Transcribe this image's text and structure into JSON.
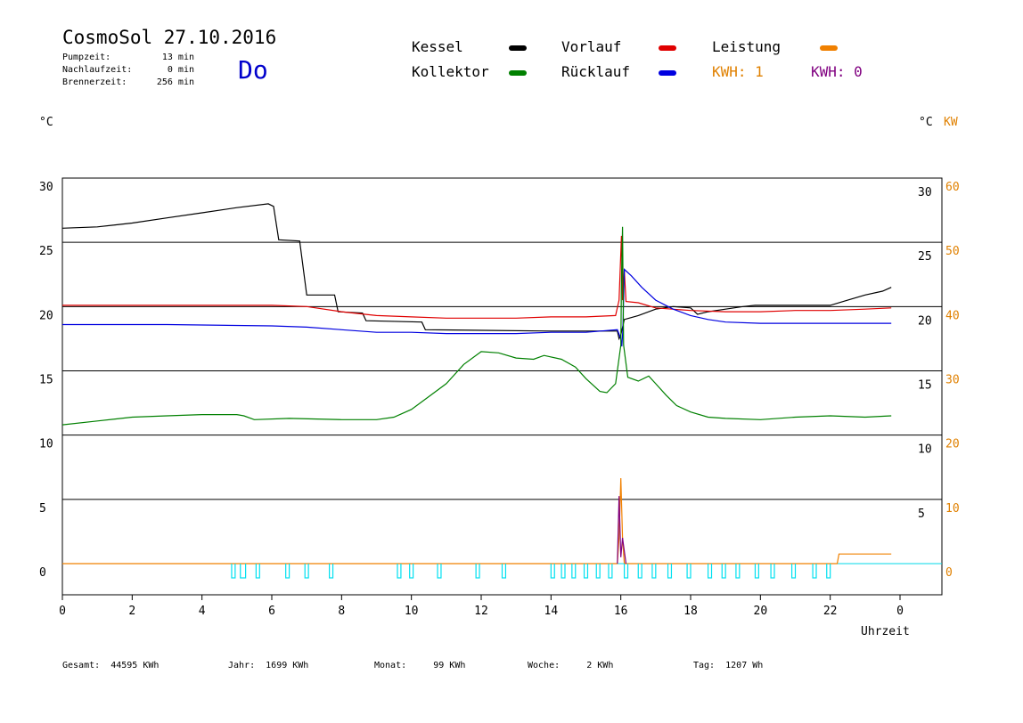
{
  "header": {
    "title": "CosmoSol 27.10.2016",
    "day": "Do",
    "info": [
      {
        "label": "Pumpzeit:",
        "value": "13 min"
      },
      {
        "label": "Nachlaufzeit:",
        "value": "0 min"
      },
      {
        "label": "Brennerzeit:",
        "value": "256 min"
      }
    ]
  },
  "legend": {
    "kessel": {
      "label": "Kessel",
      "color": "#000000"
    },
    "vorlauf": {
      "label": "Vorlauf",
      "color": "#e00000"
    },
    "leistung": {
      "label": "Leistung",
      "color": "#f08000"
    },
    "kollektor": {
      "label": "Kollektor",
      "color": "#008000"
    },
    "ruecklauf": {
      "label": "Rücklauf",
      "color": "#0000e0"
    },
    "kwh1": {
      "label": "KWH: 1",
      "color": "#e08000"
    },
    "kwh0": {
      "label": "KWH: 0",
      "color": "#800080"
    }
  },
  "units": {
    "left": "°C",
    "right_c": "°C",
    "right_kw": "KW"
  },
  "stats": {
    "gesamt": {
      "label": "Gesamt:",
      "value": "44595 KWh"
    },
    "jahr": {
      "label": "Jahr:",
      "value": "1699 KWh"
    },
    "monat": {
      "label": "Monat:",
      "value": "99 KWh"
    },
    "woche": {
      "label": "Woche:",
      "value": "2 KWh"
    },
    "tag": {
      "label": "Tag:",
      "value": "1207 Wh"
    }
  },
  "chart_data": {
    "type": "line",
    "xlabel": "Uhrzeit",
    "xlim": [
      0,
      24
    ],
    "xtick_labels": [
      "0",
      "2",
      "4",
      "6",
      "8",
      "10",
      "12",
      "14",
      "16",
      "18",
      "20",
      "22",
      "0"
    ],
    "ylim": [
      -2.5,
      30
    ],
    "ytick_labels_left": [
      "30",
      "25",
      "20",
      "15",
      "10",
      "5",
      "0"
    ],
    "ytick_labels_right_c": [
      "30",
      "25",
      "20",
      "15",
      "10",
      "5"
    ],
    "ytick_labels_right_kw": [
      "60",
      "50",
      "40",
      "30",
      "20",
      "10",
      "0"
    ],
    "y2lim": [
      0,
      60
    ],
    "grid": true,
    "series": [
      {
        "name": "Kessel",
        "color": "#000000",
        "points": [
          [
            0,
            26.1
          ],
          [
            1,
            26.2
          ],
          [
            2,
            26.5
          ],
          [
            3,
            26.9
          ],
          [
            4,
            27.3
          ],
          [
            5,
            27.7
          ],
          [
            5.9,
            28.0
          ],
          [
            6.05,
            27.8
          ],
          [
            6.2,
            25.2
          ],
          [
            6.8,
            25.1
          ],
          [
            7.0,
            20.9
          ],
          [
            7.8,
            20.9
          ],
          [
            7.9,
            19.6
          ],
          [
            8.6,
            19.5
          ],
          [
            8.7,
            18.9
          ],
          [
            10.3,
            18.8
          ],
          [
            10.4,
            18.2
          ],
          [
            14,
            18.1
          ],
          [
            15.9,
            18.1
          ],
          [
            15.95,
            17.5
          ],
          [
            16.0,
            17.8
          ],
          [
            16.1,
            19.0
          ],
          [
            16.5,
            19.3
          ],
          [
            17.0,
            19.8
          ],
          [
            17.5,
            20.0
          ],
          [
            18.0,
            19.9
          ],
          [
            18.2,
            19.4
          ],
          [
            18.5,
            19.6
          ],
          [
            19.0,
            19.8
          ],
          [
            19.5,
            20.0
          ],
          [
            19.85,
            20.1
          ],
          [
            22.0,
            20.1
          ],
          [
            22.5,
            20.5
          ],
          [
            23.0,
            20.9
          ],
          [
            23.5,
            21.2
          ],
          [
            23.75,
            21.5
          ]
        ]
      },
      {
        "name": "Vorlauf",
        "color": "#e00000",
        "points": [
          [
            0,
            20.1
          ],
          [
            3,
            20.1
          ],
          [
            6,
            20.1
          ],
          [
            7,
            20.0
          ],
          [
            8,
            19.6
          ],
          [
            9,
            19.3
          ],
          [
            10,
            19.2
          ],
          [
            11,
            19.1
          ],
          [
            12,
            19.1
          ],
          [
            13,
            19.1
          ],
          [
            14,
            19.2
          ],
          [
            15,
            19.2
          ],
          [
            15.85,
            19.3
          ],
          [
            15.95,
            20.5
          ],
          [
            16.02,
            25.5
          ],
          [
            16.05,
            20.5
          ],
          [
            16.1,
            22.8
          ],
          [
            16.15,
            20.4
          ],
          [
            16.5,
            20.3
          ],
          [
            17,
            19.9
          ],
          [
            18,
            19.7
          ],
          [
            19,
            19.6
          ],
          [
            20,
            19.6
          ],
          [
            21,
            19.7
          ],
          [
            22,
            19.7
          ],
          [
            23,
            19.8
          ],
          [
            23.75,
            19.9
          ]
        ]
      },
      {
        "name": "Rücklauf",
        "color": "#0000e0",
        "points": [
          [
            0,
            18.6
          ],
          [
            3,
            18.6
          ],
          [
            6,
            18.5
          ],
          [
            7,
            18.4
          ],
          [
            8,
            18.2
          ],
          [
            9,
            18.0
          ],
          [
            10,
            18.0
          ],
          [
            11,
            17.9
          ],
          [
            12,
            17.9
          ],
          [
            13,
            17.9
          ],
          [
            14,
            18.0
          ],
          [
            15,
            18.0
          ],
          [
            15.9,
            18.2
          ],
          [
            16.0,
            17.5
          ],
          [
            16.03,
            16.9
          ],
          [
            16.06,
            18.2
          ],
          [
            16.1,
            22.9
          ],
          [
            16.3,
            22.4
          ],
          [
            16.6,
            21.5
          ],
          [
            17.0,
            20.5
          ],
          [
            17.5,
            19.8
          ],
          [
            18,
            19.3
          ],
          [
            18.5,
            19.0
          ],
          [
            19,
            18.8
          ],
          [
            20,
            18.7
          ],
          [
            21,
            18.7
          ],
          [
            22,
            18.7
          ],
          [
            23.75,
            18.7
          ]
        ]
      },
      {
        "name": "Kollektor",
        "color": "#008000",
        "points": [
          [
            0,
            10.8
          ],
          [
            1,
            11.1
          ],
          [
            2,
            11.4
          ],
          [
            3,
            11.5
          ],
          [
            4,
            11.6
          ],
          [
            5,
            11.6
          ],
          [
            5.2,
            11.5
          ],
          [
            5.5,
            11.2
          ],
          [
            6.5,
            11.3
          ],
          [
            8,
            11.2
          ],
          [
            9,
            11.2
          ],
          [
            9.5,
            11.4
          ],
          [
            10,
            12.0
          ],
          [
            10.5,
            13.0
          ],
          [
            11,
            14.0
          ],
          [
            11.5,
            15.5
          ],
          [
            12,
            16.5
          ],
          [
            12.5,
            16.4
          ],
          [
            13,
            16.0
          ],
          [
            13.5,
            15.9
          ],
          [
            13.8,
            16.2
          ],
          [
            14.3,
            15.9
          ],
          [
            14.7,
            15.3
          ],
          [
            15.0,
            14.4
          ],
          [
            15.4,
            13.4
          ],
          [
            15.6,
            13.3
          ],
          [
            15.85,
            14.0
          ],
          [
            16.0,
            17.0
          ],
          [
            16.02,
            22.0
          ],
          [
            16.05,
            26.2
          ],
          [
            16.08,
            17.0
          ],
          [
            16.2,
            14.5
          ],
          [
            16.5,
            14.2
          ],
          [
            16.8,
            14.6
          ],
          [
            17.0,
            14.0
          ],
          [
            17.3,
            13.1
          ],
          [
            17.6,
            12.3
          ],
          [
            18,
            11.8
          ],
          [
            18.5,
            11.4
          ],
          [
            19,
            11.3
          ],
          [
            20,
            11.2
          ],
          [
            21,
            11.4
          ],
          [
            22,
            11.5
          ],
          [
            23,
            11.4
          ],
          [
            23.75,
            11.5
          ]
        ]
      },
      {
        "name": "Leistung",
        "color": "#f08000",
        "axis": "kw",
        "points": [
          [
            0,
            0
          ],
          [
            15.9,
            0
          ],
          [
            15.95,
            4
          ],
          [
            16.0,
            13.3
          ],
          [
            16.05,
            4
          ],
          [
            16.1,
            0
          ],
          [
            22.2,
            0
          ],
          [
            22.25,
            1.5
          ],
          [
            23.75,
            1.5
          ]
        ]
      },
      {
        "name": "KWH 0",
        "color": "#800080",
        "axis": "kw",
        "points": [
          [
            15.9,
            0
          ],
          [
            15.95,
            10.5
          ],
          [
            16.0,
            1.0
          ],
          [
            16.05,
            4.0
          ],
          [
            16.15,
            0
          ]
        ]
      },
      {
        "name": "Pumpe",
        "color": "#00e0f0",
        "type": "pulses",
        "points": [
          [
            4.85,
            4.95
          ],
          [
            5.1,
            5.25
          ],
          [
            5.55,
            5.65
          ],
          [
            6.4,
            6.5
          ],
          [
            6.95,
            7.05
          ],
          [
            7.65,
            7.75
          ],
          [
            9.6,
            9.7
          ],
          [
            9.95,
            10.05
          ],
          [
            10.75,
            10.85
          ],
          [
            11.85,
            11.95
          ],
          [
            12.6,
            12.7
          ],
          [
            14.0,
            14.1
          ],
          [
            14.3,
            14.4
          ],
          [
            14.6,
            14.7
          ],
          [
            14.95,
            15.05
          ],
          [
            15.3,
            15.4
          ],
          [
            15.65,
            15.75
          ],
          [
            16.1,
            16.2
          ],
          [
            16.5,
            16.6
          ],
          [
            16.9,
            17.0
          ],
          [
            17.35,
            17.45
          ],
          [
            17.9,
            18.0
          ],
          [
            18.5,
            18.6
          ],
          [
            18.9,
            19.0
          ],
          [
            19.3,
            19.4
          ],
          [
            19.85,
            19.95
          ],
          [
            20.3,
            20.4
          ],
          [
            20.9,
            21.0
          ],
          [
            21.5,
            21.6
          ],
          [
            21.9,
            22.0
          ]
        ]
      }
    ]
  }
}
